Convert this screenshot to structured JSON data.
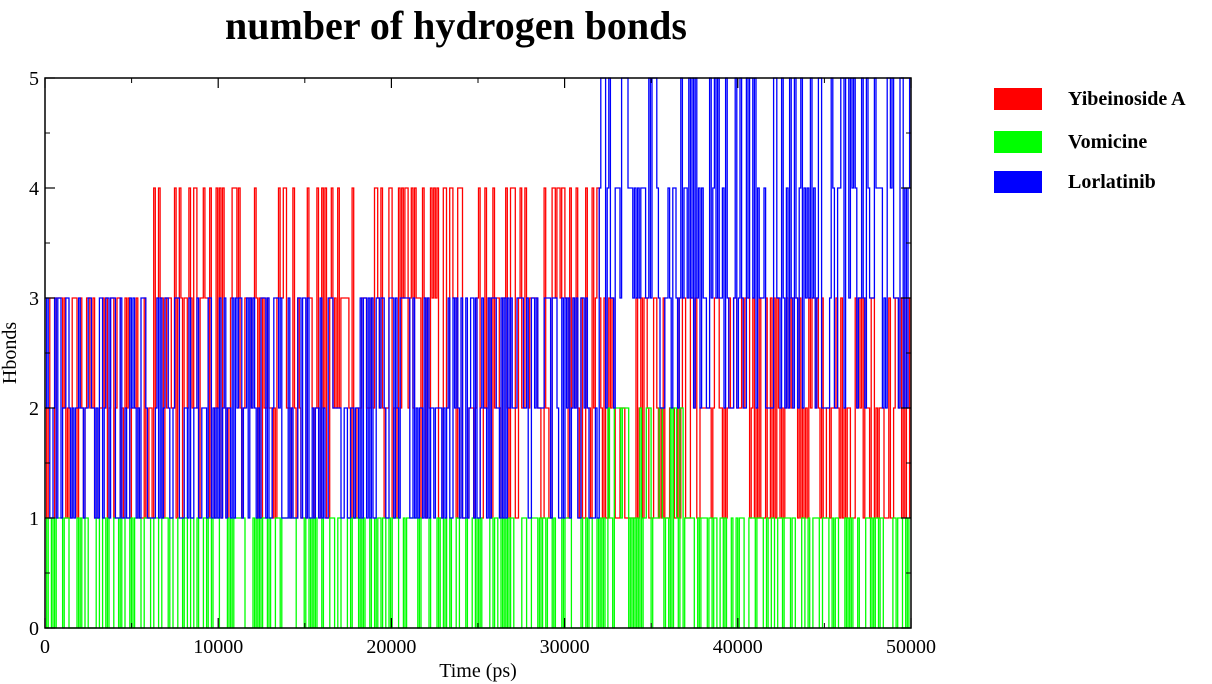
{
  "chart_data": {
    "type": "line",
    "title": "number of hydrogen bonds",
    "xlabel": "Time (ps)",
    "ylabel": "Hbonds",
    "xlim": [
      0,
      50000
    ],
    "ylim": [
      0,
      5
    ],
    "x_ticks": [
      "0",
      "10000",
      "20000",
      "30000",
      "40000",
      "50000"
    ],
    "y_ticks": [
      "0",
      "1",
      "2",
      "3",
      "4",
      "5"
    ],
    "grid": false,
    "legend_position": "right",
    "series": [
      {
        "name": "Yibeinoside A",
        "color": "#ff0000",
        "segments": [
          {
            "x": [
              0,
              6000
            ],
            "low": 1,
            "high": 3
          },
          {
            "x": [
              6000,
              32000
            ],
            "low": 1,
            "high": 4
          },
          {
            "x": [
              32000,
              50000
            ],
            "low": 1,
            "high": 3
          }
        ]
      },
      {
        "name": "Vomicine",
        "color": "#00ff00",
        "segments": [
          {
            "x": [
              0,
              32500
            ],
            "low": 0,
            "high": 1
          },
          {
            "x": [
              32500,
              37500
            ],
            "low": 0,
            "high": 2
          },
          {
            "x": [
              37500,
              50000
            ],
            "low": 0,
            "high": 1
          }
        ]
      },
      {
        "name": "Lorlatinib",
        "color": "#0000ff",
        "segments": [
          {
            "x": [
              0,
              32000
            ],
            "low": 1,
            "high": 3
          },
          {
            "x": [
              32000,
              50000
            ],
            "low": 2,
            "high": 5
          }
        ]
      }
    ]
  }
}
